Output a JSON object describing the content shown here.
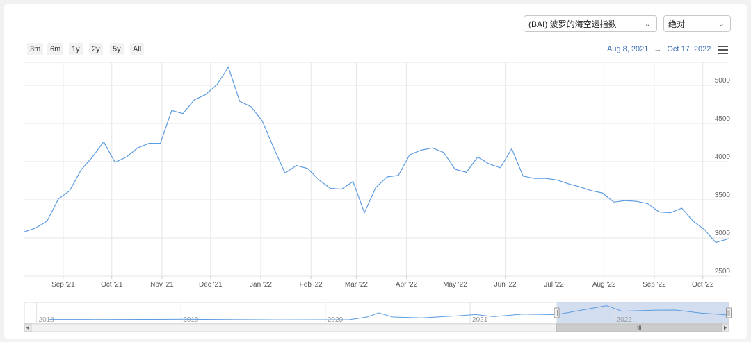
{
  "controls": {
    "index_select": "(BAI) 波罗的海空运指数",
    "mode_select": "绝对",
    "range_buttons": [
      "3m",
      "6m",
      "1y",
      "2y",
      "5y",
      "All"
    ],
    "date_from": "Aug 8, 2021",
    "date_to": "Oct 17, 2022",
    "date_separator": "→"
  },
  "colors": {
    "line": "#5b9be0",
    "grid": "#e6e6e6",
    "navigator_fill": "#c8d4ec"
  },
  "chart_data": {
    "type": "line",
    "title": "",
    "xlabel": "",
    "ylabel": "",
    "x_tick_labels": [
      "Sep '21",
      "Oct '21",
      "Nov '21",
      "Dec '21",
      "Jan '22",
      "Feb '22",
      "Mar '22",
      "Apr '22",
      "May '22",
      "Jun '22",
      "Jul '22",
      "Aug '22",
      "Sep '22",
      "Oct '22"
    ],
    "y_tick_labels": [
      "2500",
      "3000",
      "3500",
      "4000",
      "4500",
      "5000"
    ],
    "ylim": [
      2500,
      5300
    ],
    "grid": true,
    "legend": "none",
    "series": [
      {
        "values": [
          {
            "x": "2021-08-08",
            "y": 3080
          },
          {
            "x": "2021-08-15",
            "y": 3130
          },
          {
            "x": "2021-08-22",
            "y": 3220
          },
          {
            "x": "2021-08-29",
            "y": 3510
          },
          {
            "x": "2021-09-05",
            "y": 3620
          },
          {
            "x": "2021-09-12",
            "y": 3890
          },
          {
            "x": "2021-09-19",
            "y": 4060
          },
          {
            "x": "2021-09-26",
            "y": 4260
          },
          {
            "x": "2021-10-03",
            "y": 3990
          },
          {
            "x": "2021-10-10",
            "y": 4060
          },
          {
            "x": "2021-10-17",
            "y": 4180
          },
          {
            "x": "2021-10-24",
            "y": 4240
          },
          {
            "x": "2021-10-31",
            "y": 4240
          },
          {
            "x": "2021-11-07",
            "y": 4670
          },
          {
            "x": "2021-11-14",
            "y": 4630
          },
          {
            "x": "2021-11-21",
            "y": 4810
          },
          {
            "x": "2021-11-28",
            "y": 4880
          },
          {
            "x": "2021-12-05",
            "y": 5010
          },
          {
            "x": "2021-12-12",
            "y": 5240
          },
          {
            "x": "2021-12-19",
            "y": 4790
          },
          {
            "x": "2021-12-26",
            "y": 4720
          },
          {
            "x": "2022-01-02",
            "y": 4530
          },
          {
            "x": "2022-01-09",
            "y": 4180
          },
          {
            "x": "2022-01-16",
            "y": 3850
          },
          {
            "x": "2022-01-23",
            "y": 3950
          },
          {
            "x": "2022-01-30",
            "y": 3910
          },
          {
            "x": "2022-02-06",
            "y": 3760
          },
          {
            "x": "2022-02-13",
            "y": 3650
          },
          {
            "x": "2022-02-20",
            "y": 3640
          },
          {
            "x": "2022-02-27",
            "y": 3740
          },
          {
            "x": "2022-03-06",
            "y": 3330
          },
          {
            "x": "2022-03-13",
            "y": 3660
          },
          {
            "x": "2022-03-20",
            "y": 3800
          },
          {
            "x": "2022-03-27",
            "y": 3820
          },
          {
            "x": "2022-04-03",
            "y": 4090
          },
          {
            "x": "2022-04-10",
            "y": 4150
          },
          {
            "x": "2022-04-17",
            "y": 4180
          },
          {
            "x": "2022-04-24",
            "y": 4120
          },
          {
            "x": "2022-05-01",
            "y": 3900
          },
          {
            "x": "2022-05-08",
            "y": 3860
          },
          {
            "x": "2022-05-15",
            "y": 4060
          },
          {
            "x": "2022-05-22",
            "y": 3970
          },
          {
            "x": "2022-05-29",
            "y": 3920
          },
          {
            "x": "2022-06-05",
            "y": 4170
          },
          {
            "x": "2022-06-12",
            "y": 3810
          },
          {
            "x": "2022-06-19",
            "y": 3780
          },
          {
            "x": "2022-06-26",
            "y": 3780
          },
          {
            "x": "2022-07-03",
            "y": 3760
          },
          {
            "x": "2022-07-10",
            "y": 3710
          },
          {
            "x": "2022-07-17",
            "y": 3670
          },
          {
            "x": "2022-07-24",
            "y": 3620
          },
          {
            "x": "2022-07-31",
            "y": 3590
          },
          {
            "x": "2022-08-07",
            "y": 3470
          },
          {
            "x": "2022-08-14",
            "y": 3490
          },
          {
            "x": "2022-08-21",
            "y": 3480
          },
          {
            "x": "2022-08-28",
            "y": 3450
          },
          {
            "x": "2022-09-04",
            "y": 3340
          },
          {
            "x": "2022-09-11",
            "y": 3330
          },
          {
            "x": "2022-09-18",
            "y": 3390
          },
          {
            "x": "2022-09-25",
            "y": 3220
          },
          {
            "x": "2022-10-02",
            "y": 3110
          },
          {
            "x": "2022-10-09",
            "y": 2940
          },
          {
            "x": "2022-10-17",
            "y": 2990
          }
        ]
      }
    ],
    "navigator": {
      "tick_labels": [
        "2018",
        "2019",
        "2020",
        "2021",
        "2022"
      ],
      "selected_range": [
        "2021-08-08",
        "2022-10-17"
      ],
      "series": [
        {
          "x": "2018-02-01",
          "y": 1900
        },
        {
          "x": "2018-06-01",
          "y": 1880
        },
        {
          "x": "2018-10-01",
          "y": 1920
        },
        {
          "x": "2019-01-01",
          "y": 1950
        },
        {
          "x": "2019-05-01",
          "y": 1870
        },
        {
          "x": "2019-09-01",
          "y": 1820
        },
        {
          "x": "2020-01-01",
          "y": 1840
        },
        {
          "x": "2020-03-01",
          "y": 1830
        },
        {
          "x": "2020-04-15",
          "y": 2500
        },
        {
          "x": "2020-05-15",
          "y": 3500
        },
        {
          "x": "2020-06-20",
          "y": 2500
        },
        {
          "x": "2020-09-01",
          "y": 2300
        },
        {
          "x": "2020-12-01",
          "y": 2800
        },
        {
          "x": "2021-01-15",
          "y": 3100
        },
        {
          "x": "2021-03-01",
          "y": 2600
        },
        {
          "x": "2021-05-15",
          "y": 3200
        },
        {
          "x": "2021-08-08",
          "y": 3080
        },
        {
          "x": "2021-10-01",
          "y": 4000
        },
        {
          "x": "2021-12-12",
          "y": 5240
        },
        {
          "x": "2022-01-20",
          "y": 3900
        },
        {
          "x": "2022-04-15",
          "y": 4150
        },
        {
          "x": "2022-06-05",
          "y": 4170
        },
        {
          "x": "2022-08-07",
          "y": 3470
        },
        {
          "x": "2022-10-17",
          "y": 2990
        }
      ]
    }
  }
}
